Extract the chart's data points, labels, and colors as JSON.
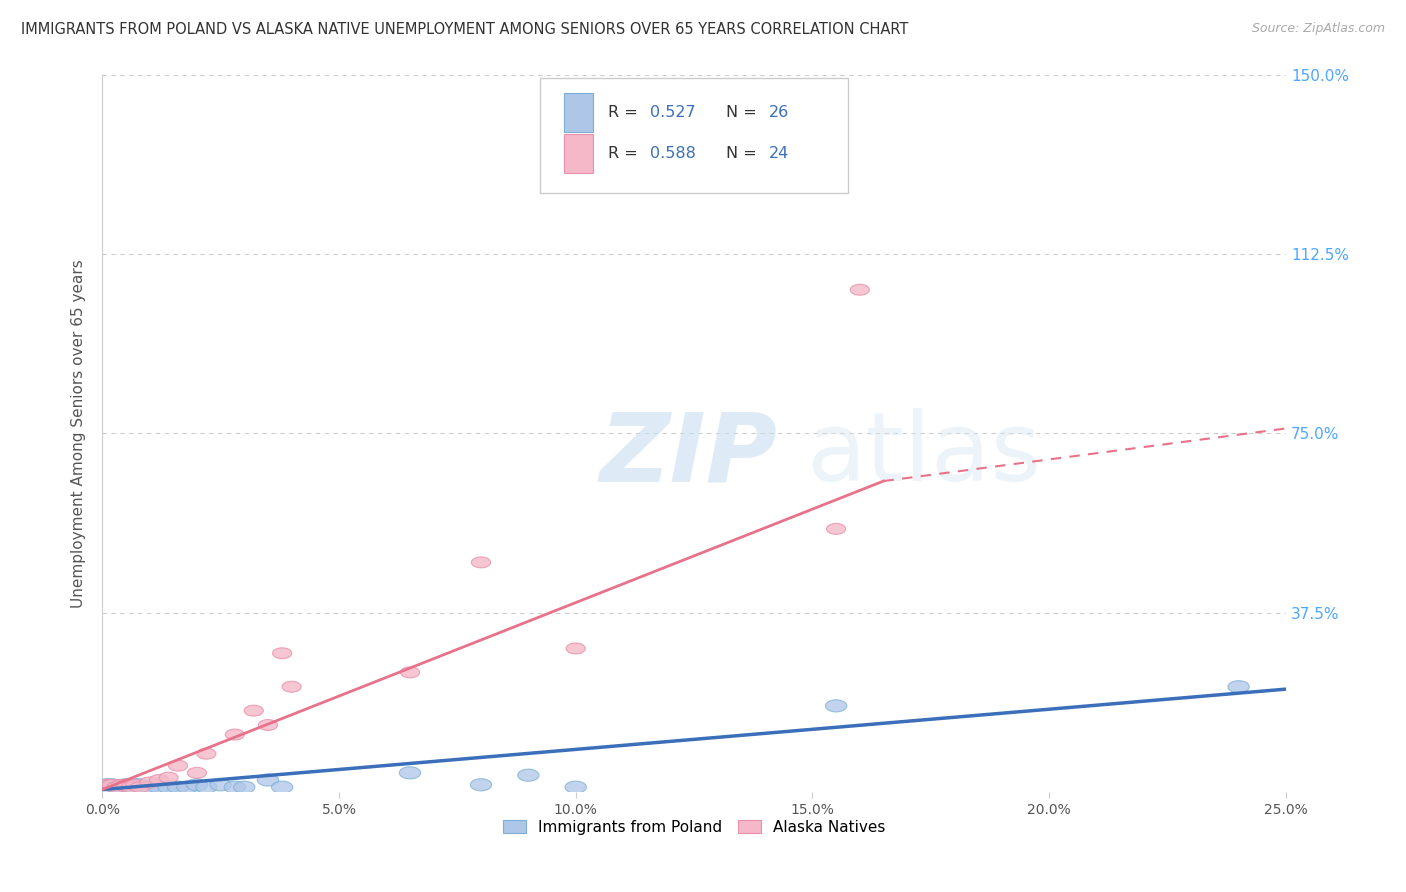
{
  "title": "IMMIGRANTS FROM POLAND VS ALASKA NATIVE UNEMPLOYMENT AMONG SENIORS OVER 65 YEARS CORRELATION CHART",
  "source": "Source: ZipAtlas.com",
  "ylabel": "Unemployment Among Seniors over 65 years",
  "legend_label1": "Immigrants from Poland",
  "legend_label2": "Alaska Natives",
  "legend_r1": "R = 0.527",
  "legend_n1": "N = 26",
  "legend_r2": "R = 0.588",
  "legend_n2": "N = 24",
  "xlim": [
    0.0,
    0.25
  ],
  "ylim": [
    0.0,
    1.5
  ],
  "xticks": [
    0.0,
    0.05,
    0.1,
    0.15,
    0.2,
    0.25
  ],
  "yticks": [
    0.0,
    0.375,
    0.75,
    1.125,
    1.5
  ],
  "xticklabels": [
    "0.0%",
    "5.0%",
    "10.0%",
    "15.0%",
    "20.0%",
    "25.0%"
  ],
  "yticklabels_right": [
    "",
    "37.5%",
    "75.0%",
    "112.5%",
    "150.0%"
  ],
  "color_blue_fill": "#aec6e8",
  "color_blue_edge": "#7bafd4",
  "color_pink_fill": "#f4b8c8",
  "color_pink_edge": "#e890aa",
  "color_line_blue": "#3b6fba",
  "color_line_pink": "#e8728a",
  "color_axis_right": "#4da6ff",
  "color_n_label": "#333333",
  "scatter_blue_x": [
    0.001,
    0.002,
    0.003,
    0.004,
    0.005,
    0.006,
    0.007,
    0.008,
    0.01,
    0.012,
    0.014,
    0.016,
    0.018,
    0.02,
    0.022,
    0.025,
    0.028,
    0.03,
    0.035,
    0.038,
    0.065,
    0.08,
    0.09,
    0.1,
    0.155,
    0.24
  ],
  "scatter_blue_y": [
    0.015,
    0.015,
    0.01,
    0.01,
    0.015,
    0.005,
    0.015,
    0.015,
    0.01,
    0.01,
    0.01,
    0.01,
    0.01,
    0.015,
    0.01,
    0.015,
    0.01,
    0.01,
    0.025,
    0.01,
    0.04,
    0.015,
    0.035,
    0.01,
    0.18,
    0.22
  ],
  "scatter_pink_x": [
    0.001,
    0.002,
    0.003,
    0.004,
    0.005,
    0.006,
    0.007,
    0.008,
    0.01,
    0.012,
    0.014,
    0.016,
    0.02,
    0.022,
    0.028,
    0.032,
    0.035,
    0.038,
    0.04,
    0.065,
    0.08,
    0.1,
    0.155,
    0.16
  ],
  "scatter_pink_y": [
    0.015,
    0.015,
    0.01,
    0.015,
    0.015,
    0.01,
    0.015,
    0.01,
    0.02,
    0.025,
    0.03,
    0.055,
    0.04,
    0.08,
    0.12,
    0.17,
    0.14,
    0.29,
    0.22,
    0.25,
    0.48,
    0.3,
    0.55,
    1.05
  ],
  "trend_blue_x0": 0.0,
  "trend_blue_x1": 0.25,
  "trend_blue_y0": 0.005,
  "trend_blue_y1": 0.215,
  "trend_pink_solid_x0": 0.0,
  "trend_pink_solid_x1": 0.165,
  "trend_pink_solid_y0": 0.005,
  "trend_pink_solid_y1": 0.65,
  "trend_pink_dash_x0": 0.165,
  "trend_pink_dash_x1": 0.25,
  "trend_pink_dash_y0": 0.65,
  "trend_pink_dash_y1": 0.76,
  "background_color": "#ffffff",
  "grid_color": "#cccccc"
}
